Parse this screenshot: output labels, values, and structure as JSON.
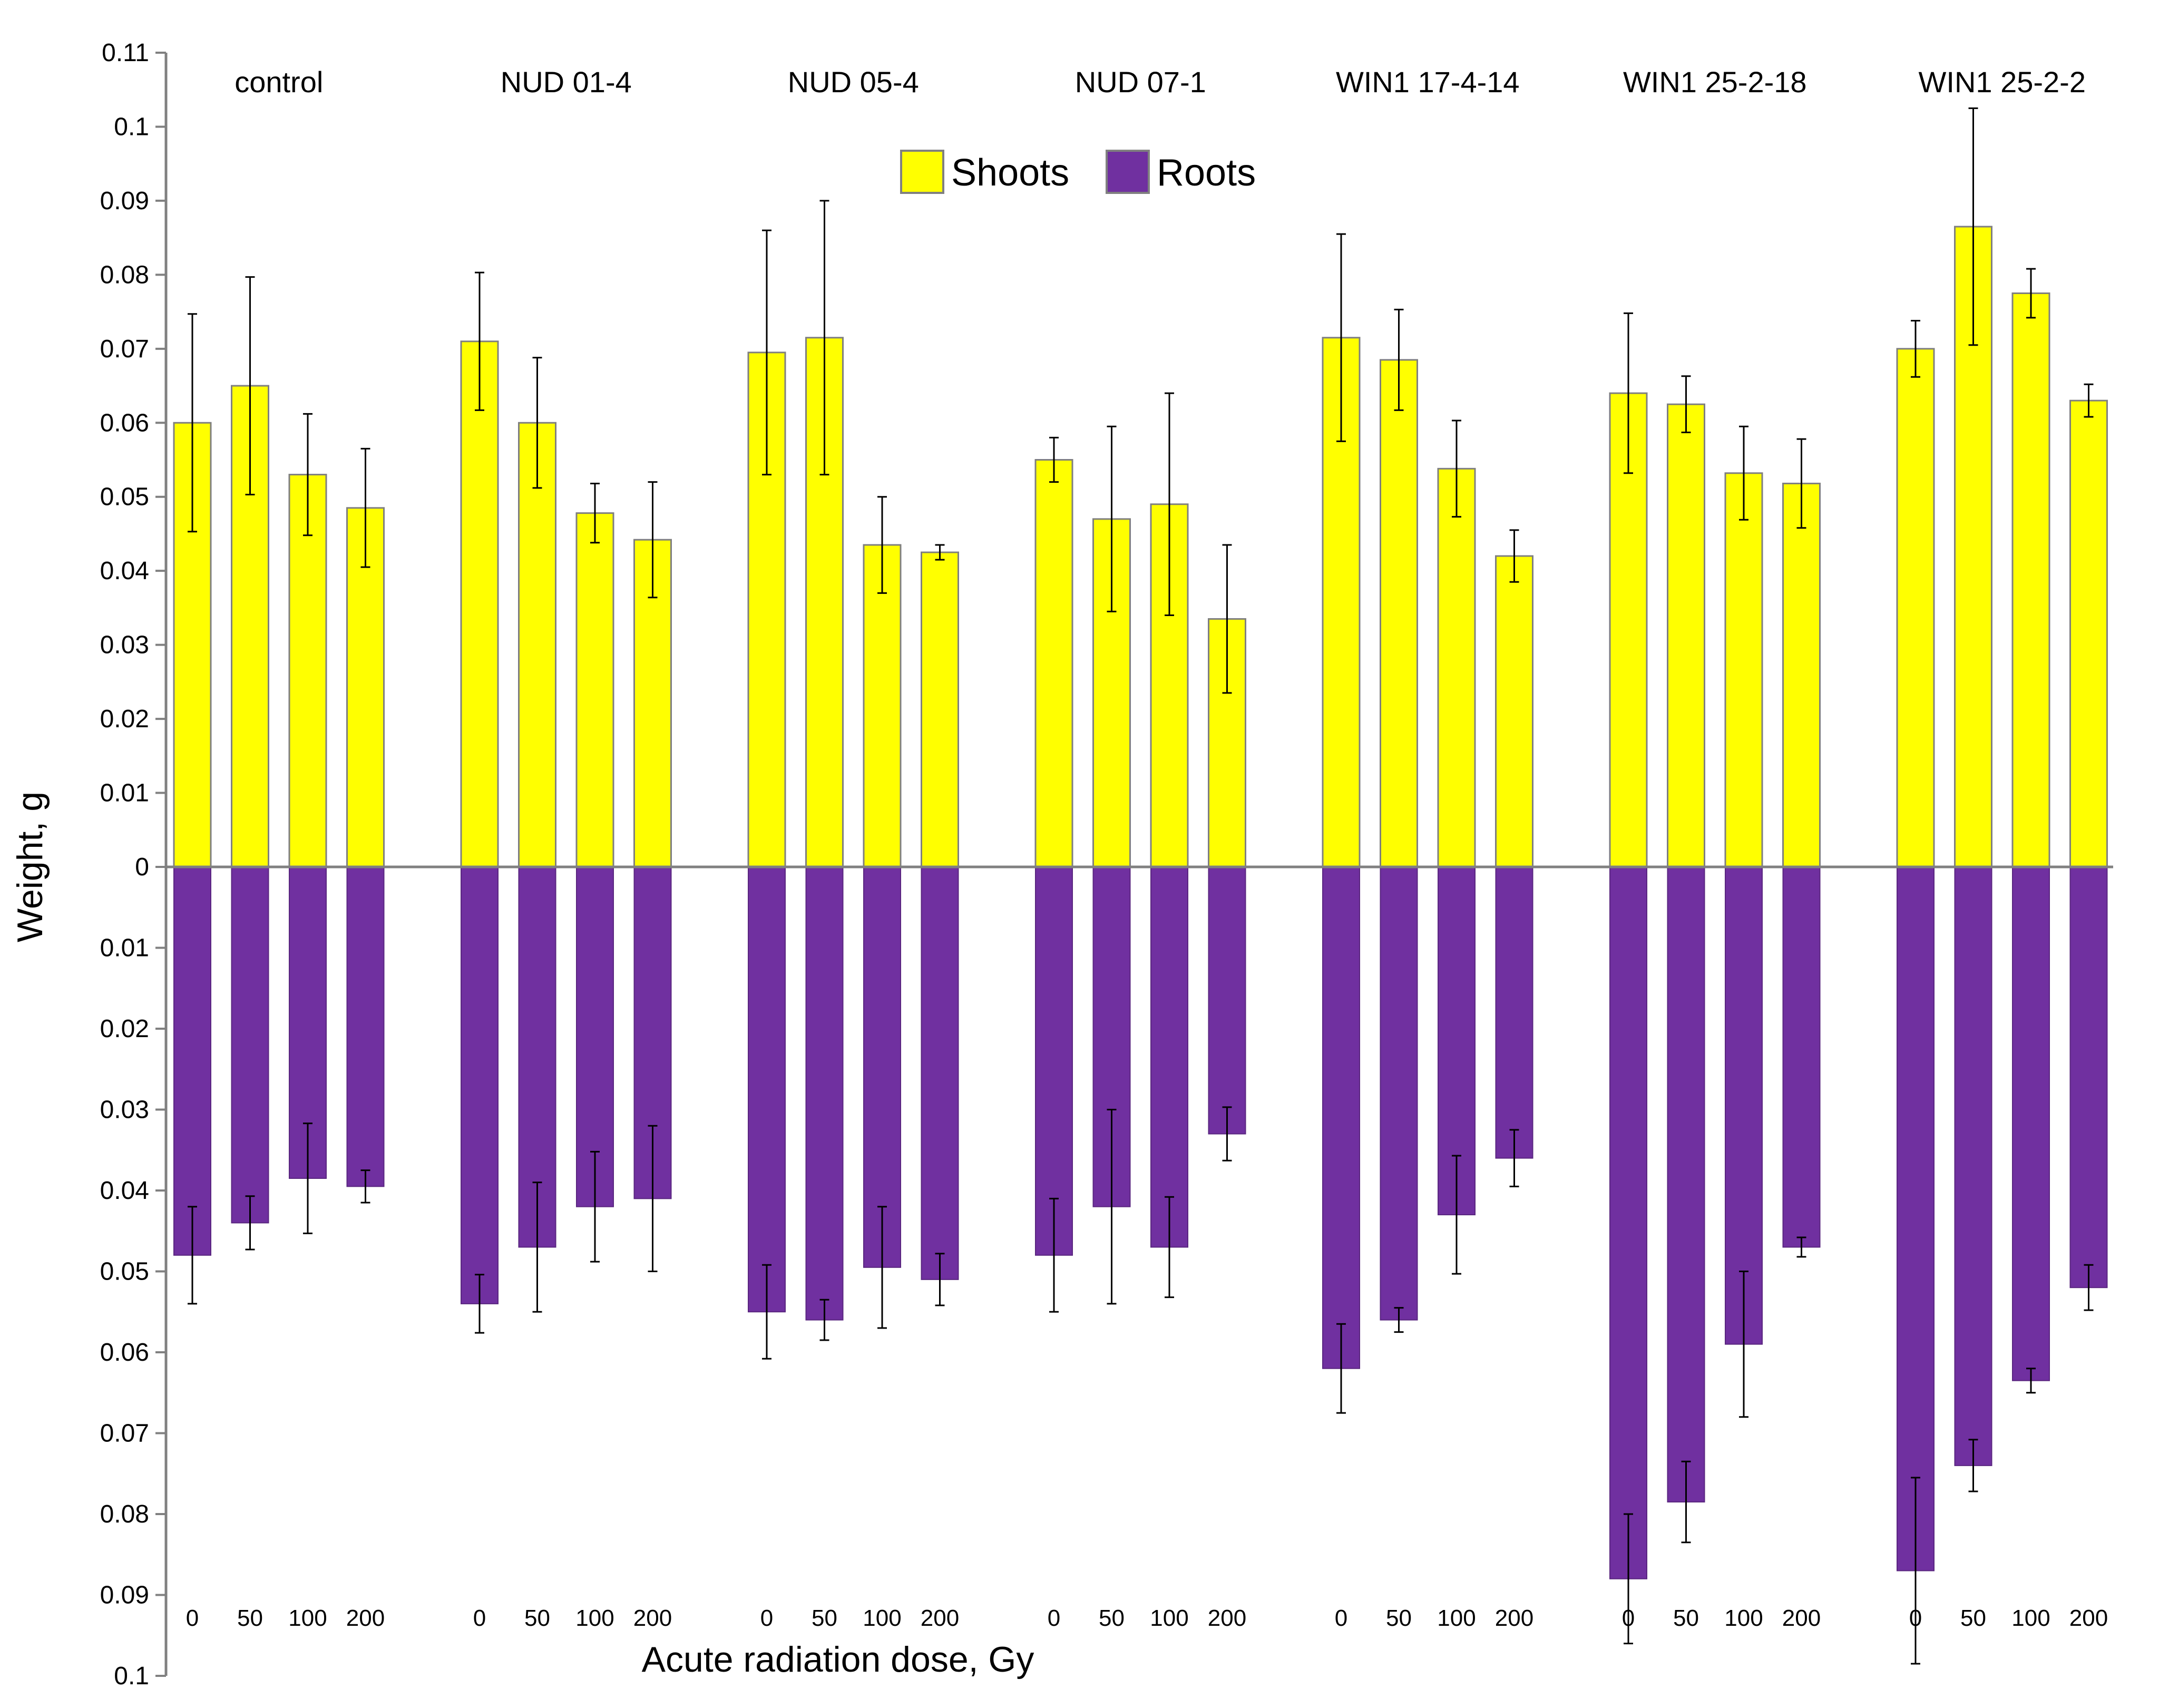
{
  "chart_data": {
    "type": "bar",
    "title": "",
    "xlabel": "Acute radiation dose, Gy",
    "ylabel": "Weight, g",
    "ylim_shoots": [
      0,
      0.11
    ],
    "ylim_roots": [
      0,
      0.1
    ],
    "y_ticks_shoots": [
      "0.11",
      "0.1",
      "0.09",
      "0.08",
      "0.07",
      "0.06",
      "0.05",
      "0.04",
      "0.03",
      "0.02",
      "0.01",
      "0"
    ],
    "y_ticks_roots": [
      "0.01",
      "0.02",
      "0.03",
      "0.04",
      "0.05",
      "0.06",
      "0.07",
      "0.08",
      "0.09",
      "0.1"
    ],
    "legend": {
      "position": "top-center",
      "entries": [
        "Shoots",
        "Roots"
      ]
    },
    "colors": {
      "Shoots": "#ffff00",
      "Roots": "#7030a0"
    },
    "doses": [
      "0",
      "50",
      "100",
      "200"
    ],
    "groups": [
      {
        "name": "control",
        "shoots": [
          0.06,
          0.065,
          0.053,
          0.0485
        ],
        "shoots_err": [
          0.0147,
          0.0147,
          0.0082,
          0.008
        ],
        "roots": [
          0.048,
          0.044,
          0.0385,
          0.0395
        ],
        "roots_err": [
          0.006,
          0.0033,
          0.0068,
          0.002
        ]
      },
      {
        "name": "NUD 01-4",
        "shoots": [
          0.071,
          0.06,
          0.0478,
          0.0442
        ],
        "shoots_err": [
          0.0093,
          0.0088,
          0.004,
          0.0078
        ],
        "roots": [
          0.054,
          0.047,
          0.042,
          0.041
        ],
        "roots_err": [
          0.0036,
          0.008,
          0.0068,
          0.009
        ]
      },
      {
        "name": "NUD 05-4",
        "shoots": [
          0.0695,
          0.0715,
          0.0435,
          0.0425
        ],
        "shoots_err": [
          0.0165,
          0.0185,
          0.0065,
          0.001
        ],
        "roots": [
          0.055,
          0.056,
          0.0495,
          0.051
        ],
        "roots_err": [
          0.0058,
          0.0025,
          0.0075,
          0.0032
        ]
      },
      {
        "name": "NUD 07-1",
        "shoots": [
          0.055,
          0.047,
          0.049,
          0.0335
        ],
        "shoots_err": [
          0.003,
          0.0125,
          0.015,
          0.01
        ],
        "roots": [
          0.048,
          0.042,
          0.047,
          0.033
        ],
        "roots_err": [
          0.007,
          0.012,
          0.0062,
          0.0033
        ]
      },
      {
        "name": "WIN1 17-4-14",
        "shoots": [
          0.0715,
          0.0685,
          0.0538,
          0.042
        ],
        "shoots_err": [
          0.014,
          0.0068,
          0.0065,
          0.0035
        ],
        "roots": [
          0.062,
          0.056,
          0.043,
          0.036
        ],
        "roots_err": [
          0.0055,
          0.0015,
          0.0073,
          0.0035
        ]
      },
      {
        "name": "WIN1 25-2-18",
        "shoots": [
          0.064,
          0.0625,
          0.0532,
          0.0518
        ],
        "shoots_err": [
          0.0108,
          0.0038,
          0.0063,
          0.006
        ],
        "roots": [
          0.088,
          0.0785,
          0.059,
          0.047
        ],
        "roots_err": [
          0.008,
          0.005,
          0.009,
          0.0012
        ]
      },
      {
        "name": "WIN1 25-2-2",
        "shoots": [
          0.07,
          0.0865,
          0.0775,
          0.063
        ],
        "shoots_err": [
          0.0038,
          0.016,
          0.0033,
          0.0022
        ],
        "roots": [
          0.087,
          0.074,
          0.0635,
          0.052
        ],
        "roots_err": [
          0.0115,
          0.0032,
          0.0015,
          0.0028
        ]
      }
    ]
  }
}
